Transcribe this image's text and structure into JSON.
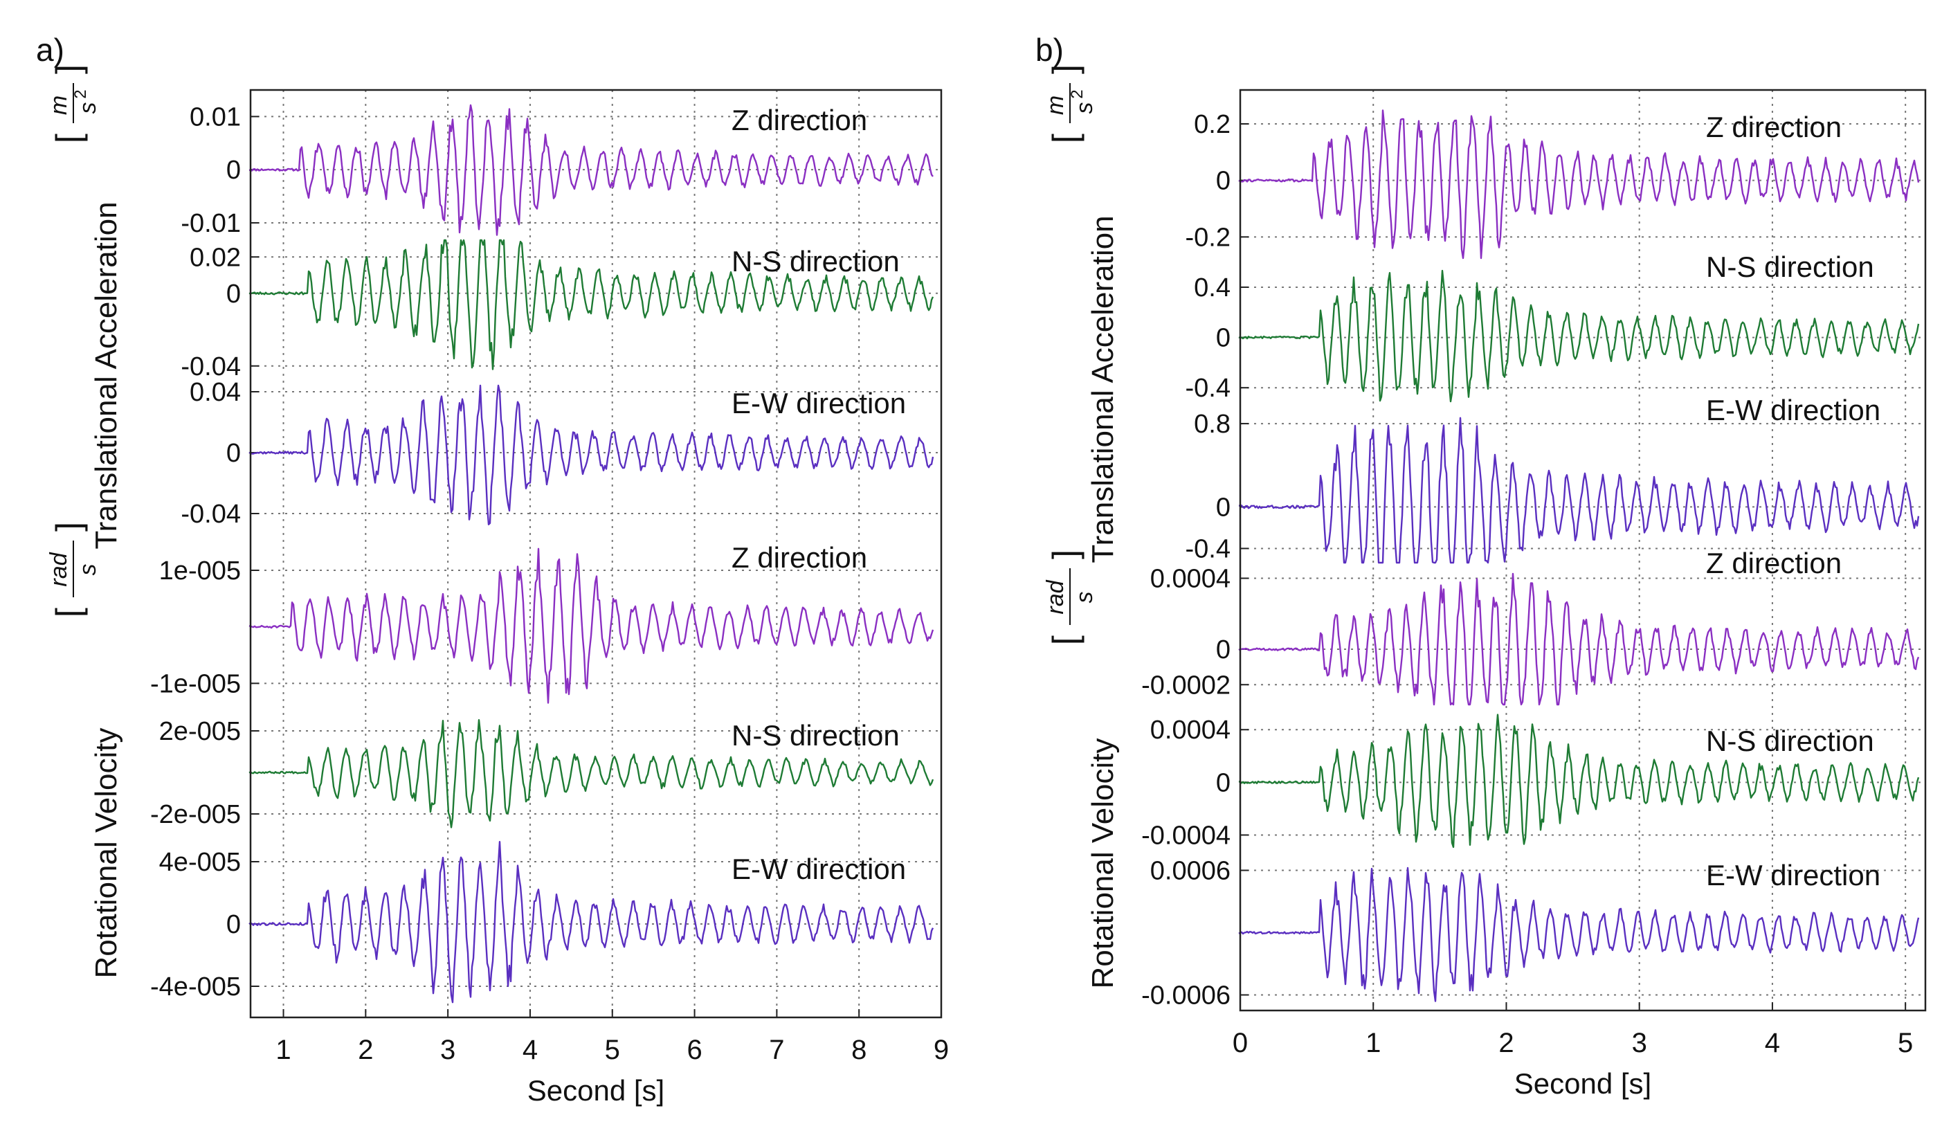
{
  "chart_data": [
    {
      "panel_label": "a)",
      "type": "line",
      "xlabel": "Second [s]",
      "xlim": [
        0.6,
        9
      ],
      "xticks": [
        1,
        2,
        3,
        4,
        5,
        6,
        7,
        8,
        9
      ],
      "group_labels": [
        {
          "text": "Translational  Acceleration",
          "unit": {
            "num": "m",
            "den": "s",
            "den_sup": "2"
          }
        },
        {
          "text": "Rotational Velocity",
          "unit": {
            "num": "rad",
            "den": "s",
            "den_sup": ""
          }
        }
      ],
      "series": [
        {
          "name": "Z direction",
          "group": 0,
          "color": "#8a2fc2",
          "ylim": [
            -0.013,
            0.015
          ],
          "yticks": [
            0.01,
            0,
            -0.01
          ],
          "ytick_labels": [
            "0.01",
            "0",
            "-0.01"
          ],
          "onset": 1.2,
          "peak_t": 3.45,
          "seed": 11
        },
        {
          "name": "N-S direction",
          "group": 0,
          "color": "#1e7b34",
          "ylim": [
            -0.05,
            0.03
          ],
          "yticks": [
            0.02,
            0,
            -0.04
          ],
          "ytick_labels": [
            "0.02",
            "0",
            "-0.04"
          ],
          "onset": 1.3,
          "peak_t": 3.3,
          "seed": 23
        },
        {
          "name": "E-W direction",
          "group": 0,
          "color": "#5a2fc0",
          "ylim": [
            -0.055,
            0.045
          ],
          "yticks": [
            0.04,
            0,
            -0.04
          ],
          "ytick_labels": [
            "0.04",
            "0",
            "-0.04"
          ],
          "onset": 1.3,
          "peak_t": 3.3,
          "seed": 37
        },
        {
          "name": "Z direction",
          "group": 1,
          "color": "#8a2fc2",
          "ylim": [
            -1.4e-05,
            1.6e-05
          ],
          "yticks": [
            1e-05,
            -1e-05
          ],
          "ytick_labels": [
            "1e-005",
            "-1e-005"
          ],
          "onset": 1.1,
          "peak_t": 4.2,
          "seed": 51
        },
        {
          "name": "N-S direction",
          "group": 1,
          "color": "#1e7b34",
          "ylim": [
            -2.8e-05,
            3.2e-05
          ],
          "yticks": [
            2e-05,
            -2e-05
          ],
          "ytick_labels": [
            "2e-005",
            "-2e-005"
          ],
          "onset": 1.3,
          "peak_t": 3.3,
          "seed": 67
        },
        {
          "name": "E-W direction",
          "group": 1,
          "color": "#5a2fc0",
          "ylim": [
            -6e-05,
            6e-05
          ],
          "yticks": [
            4e-05,
            0,
            -4e-05
          ],
          "ytick_labels": [
            "4e-005",
            "0",
            "-4e-005"
          ],
          "onset": 1.3,
          "peak_t": 3.3,
          "seed": 79
        }
      ]
    },
    {
      "panel_label": "b)",
      "type": "line",
      "xlabel": "Second [s]",
      "xlim": [
        0,
        5.15
      ],
      "xticks": [
        0,
        1,
        2,
        3,
        4,
        5
      ],
      "group_labels": [
        {
          "text": "Translational  Acceleration",
          "unit": {
            "num": "m",
            "den": "s",
            "den_sup": "2"
          }
        },
        {
          "text": "Rotational Velocity",
          "unit": {
            "num": "rad",
            "den": "s",
            "den_sup": ""
          }
        }
      ],
      "series": [
        {
          "name": "Z direction",
          "group": 0,
          "color": "#8a2fc2",
          "ylim": [
            -0.28,
            0.32
          ],
          "yticks": [
            0.2,
            0,
            -0.2
          ],
          "ytick_labels": [
            "0.2",
            "0",
            "-0.2"
          ],
          "onset": 0.55,
          "peak_t": 1.45,
          "seed": 91
        },
        {
          "name": "N-S direction",
          "group": 0,
          "color": "#1e7b34",
          "ylim": [
            -0.52,
            0.62
          ],
          "yticks": [
            0.4,
            0,
            -0.4
          ],
          "ytick_labels": [
            "0.4",
            "0",
            "-0.4"
          ],
          "onset": 0.6,
          "peak_t": 1.35,
          "seed": 103
        },
        {
          "name": "E-W direction",
          "group": 0,
          "color": "#5a2fc0",
          "ylim": [
            -0.55,
            1.0
          ],
          "yticks": [
            0.8,
            0,
            -0.4
          ],
          "ytick_labels": [
            "0.8",
            "0",
            "-0.4"
          ],
          "onset": 0.6,
          "peak_t": 1.35,
          "seed": 117
        },
        {
          "name": "Z direction",
          "group": 1,
          "color": "#8a2fc2",
          "ylim": [
            -0.00032,
            0.00048
          ],
          "yticks": [
            0.0004,
            0,
            -0.0002
          ],
          "ytick_labels": [
            "0.0004",
            "0",
            "-0.0002"
          ],
          "onset": 0.6,
          "peak_t": 1.9,
          "seed": 131
        },
        {
          "name": "N-S direction",
          "group": 1,
          "color": "#1e7b34",
          "ylim": [
            -0.00055,
            0.00058
          ],
          "yticks": [
            0.0004,
            0,
            -0.0004
          ],
          "ytick_labels": [
            "0.0004",
            "0",
            "-0.0004"
          ],
          "onset": 0.6,
          "peak_t": 1.75,
          "seed": 149
        },
        {
          "name": "E-W direction",
          "group": 1,
          "color": "#5a2fc0",
          "ylim": [
            -0.00075,
            0.00075
          ],
          "yticks": [
            0.0006,
            -0.0006
          ],
          "ytick_labels": [
            "0.0006",
            "-0.0006"
          ],
          "onset": 0.6,
          "peak_t": 1.35,
          "seed": 163
        }
      ]
    }
  ]
}
